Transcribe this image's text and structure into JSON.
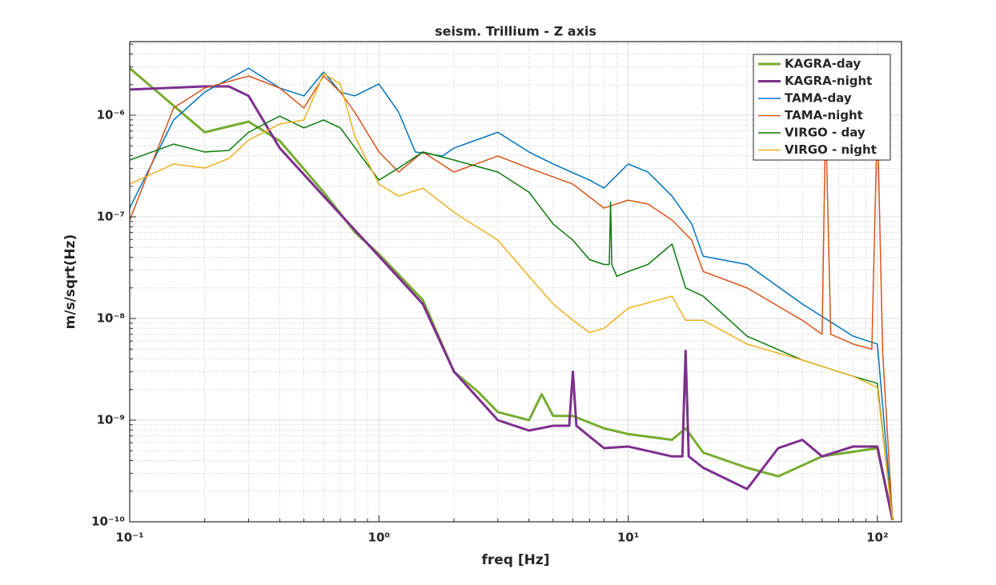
{
  "chart_data": {
    "type": "line",
    "title": "seism. Trillium - Z axis",
    "xlabel": "freq [Hz]",
    "ylabel": "m/s/sqrt(Hz)",
    "xscale": "log",
    "yscale": "log",
    "xlim": [
      0.1,
      125
    ],
    "ylim": [
      1e-10,
      5.3e-06
    ],
    "xticks": [
      {
        "value": 0.1,
        "label": "10⁻¹"
      },
      {
        "value": 1,
        "label": "10⁰"
      },
      {
        "value": 10,
        "label": "10¹"
      },
      {
        "value": 100,
        "label": "10²"
      }
    ],
    "yticks": [
      {
        "value": 1e-10,
        "label": "10⁻¹⁰"
      },
      {
        "value": 1e-09,
        "label": "10⁻⁹"
      },
      {
        "value": 1e-08,
        "label": "10⁻⁸"
      },
      {
        "value": 1e-07,
        "label": "10⁻⁷"
      },
      {
        "value": 1e-06,
        "label": "10⁻⁶"
      }
    ],
    "grid": true,
    "legend": "upper right",
    "series": [
      {
        "name": "KAGRA-day",
        "color": "#77ac30",
        "line_width": 3,
        "x": [
          0.1,
          0.2,
          0.3,
          0.4,
          0.6,
          0.8,
          1,
          1.5,
          2,
          2.5,
          3,
          4,
          4.5,
          5,
          6,
          8,
          10,
          15,
          17,
          20,
          30,
          40,
          60,
          100,
          115
        ],
        "values": [
          2.9e-06,
          6.8e-07,
          8.65e-07,
          5.6e-07,
          1.75e-07,
          7.1e-08,
          4.3e-08,
          1.52e-08,
          3e-09,
          1.9e-09,
          1.2e-09,
          1e-09,
          1.8e-09,
          1.1e-09,
          1.1e-09,
          8.3e-10,
          7.3e-10,
          6.4e-10,
          8.3e-10,
          4.8e-10,
          3.4e-10,
          2.8e-10,
          4.4e-10,
          5.3e-10,
          1.04e-10
        ]
      },
      {
        "name": "KAGRA-night",
        "color": "#7e2f8e",
        "line_width": 3,
        "x": [
          0.1,
          0.2,
          0.25,
          0.3,
          0.4,
          0.6,
          1,
          1.5,
          2,
          3,
          4,
          5,
          5.8,
          6,
          6.2,
          8,
          10,
          15,
          16.5,
          17,
          17.5,
          20,
          30,
          40,
          50,
          60,
          80,
          100,
          115
        ],
        "values": [
          1.79e-06,
          1.92e-06,
          1.92e-06,
          1.55e-06,
          4.75e-07,
          1.6e-07,
          4.1e-08,
          1.39e-08,
          3e-09,
          1e-09,
          7.9e-10,
          8.8e-10,
          8.8e-10,
          3e-09,
          8.8e-10,
          5.3e-10,
          5.5e-10,
          4.4e-10,
          4.4e-10,
          4.8e-09,
          4.4e-10,
          3.4e-10,
          2.1e-10,
          5.3e-10,
          6.4e-10,
          4.4e-10,
          5.5e-10,
          5.5e-10,
          1.04e-10
        ]
      },
      {
        "name": "TAMA-day",
        "color": "#0072bd",
        "line_width": 1.5,
        "x": [
          0.1,
          0.15,
          0.2,
          0.3,
          0.4,
          0.5,
          0.6,
          0.7,
          0.8,
          1,
          1.2,
          1.4,
          1.8,
          2,
          3,
          4,
          5,
          7,
          8,
          10,
          12,
          15,
          18,
          20,
          30,
          50,
          80,
          100,
          115
        ],
        "values": [
          1.22e-07,
          8.97e-07,
          1.69e-06,
          2.9e-06,
          1.85e-06,
          1.55e-06,
          2.66e-06,
          1.69e-06,
          1.55e-06,
          2.03e-06,
          1.07e-06,
          4.35e-07,
          3.97e-07,
          4.75e-07,
          6.8e-07,
          4.35e-07,
          3.31e-07,
          2.3e-07,
          1.92e-07,
          3.31e-07,
          2.76e-07,
          1.6e-07,
          8.5e-08,
          4.1e-08,
          3.4e-08,
          1.39e-08,
          6.7e-09,
          5.6e-09,
          1.04e-10
        ]
      },
      {
        "name": "TAMA-night",
        "color": "#d95319",
        "line_width": 1.5,
        "x": [
          0.1,
          0.15,
          0.2,
          0.3,
          0.4,
          0.5,
          0.6,
          0.7,
          0.8,
          1,
          1.2,
          1.5,
          2,
          3,
          4,
          6,
          8,
          10,
          12,
          15,
          18,
          20,
          30,
          50,
          60,
          62,
          65,
          80,
          95,
          100,
          105,
          115
        ],
        "values": [
          9.3e-08,
          1.18e-06,
          1.85e-06,
          2.43e-06,
          1.85e-06,
          1.18e-06,
          2.43e-06,
          1.69e-06,
          1.07e-06,
          4.35e-07,
          2.76e-07,
          4.35e-07,
          2.76e-07,
          3.97e-07,
          3.02e-07,
          2.1e-07,
          1.22e-07,
          1.46e-07,
          1.34e-07,
          9.3e-08,
          5.9e-08,
          2.9e-08,
          2e-08,
          9.6e-09,
          7e-09,
          1e-06,
          7e-09,
          5.6e-09,
          5e-09,
          1e-06,
          4.7e-09,
          1.04e-10
        ]
      },
      {
        "name": "VIRGO - day",
        "color": "#0a7a0a",
        "line_width": 1.5,
        "x": [
          0.1,
          0.15,
          0.2,
          0.25,
          0.3,
          0.4,
          0.5,
          0.6,
          0.7,
          1,
          1.2,
          1.5,
          2,
          3,
          4,
          5,
          6,
          7,
          8,
          8.4,
          8.5,
          8.6,
          9,
          10,
          12,
          15,
          17,
          20,
          30,
          50,
          80,
          100,
          115
        ],
        "values": [
          3.62e-07,
          5.2e-07,
          4.35e-07,
          4.5e-07,
          6.8e-07,
          9.8e-07,
          7.5e-07,
          8.97e-07,
          7.5e-07,
          2.3e-07,
          3.02e-07,
          4.35e-07,
          3.62e-07,
          2.76e-07,
          1.75e-07,
          8.5e-08,
          5.9e-08,
          3.8e-08,
          3.4e-08,
          3.4e-08,
          1.4e-07,
          3.4e-08,
          2.6e-08,
          2.9e-08,
          3.4e-08,
          5.4e-08,
          2e-08,
          1.66e-08,
          6.7e-09,
          3.9e-09,
          2.7e-09,
          2.3e-09,
          1.04e-10
        ]
      },
      {
        "name": "VIRGO - night",
        "color": "#edb120",
        "line_width": 1.5,
        "x": [
          0.1,
          0.15,
          0.2,
          0.25,
          0.3,
          0.4,
          0.5,
          0.6,
          0.7,
          0.8,
          1,
          1.2,
          1.5,
          2,
          3,
          4,
          5,
          6,
          7,
          8,
          10,
          15,
          17,
          20,
          30,
          50,
          80,
          100,
          115
        ],
        "values": [
          2.1e-07,
          3.31e-07,
          3.02e-07,
          3.76e-07,
          5.7e-07,
          8.2e-07,
          8.97e-07,
          2.57e-06,
          2.03e-06,
          6.2e-07,
          2.1e-07,
          1.6e-07,
          1.92e-07,
          1.11e-07,
          5.9e-08,
          2.6e-08,
          1.39e-08,
          9.6e-09,
          7.3e-09,
          8e-09,
          1.26e-08,
          1.66e-08,
          9.6e-09,
          9.6e-09,
          5.6e-09,
          3.9e-09,
          2.7e-09,
          2.1e-09,
          1.04e-10
        ]
      }
    ]
  }
}
